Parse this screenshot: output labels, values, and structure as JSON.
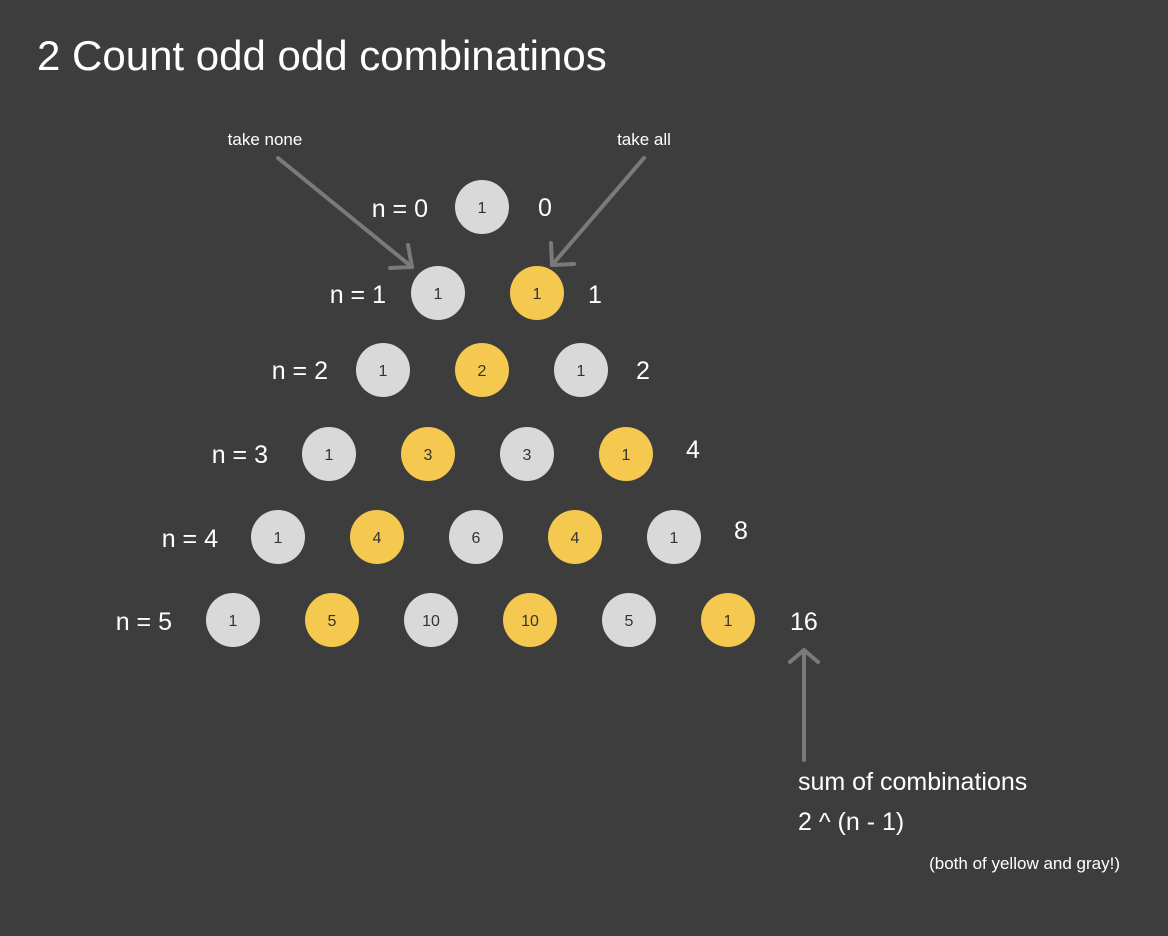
{
  "title": "2 Count odd odd combinatinos",
  "annotations": {
    "take_none": "take none",
    "take_all": "take all"
  },
  "rows": [
    {
      "label": "n = 0",
      "values": [
        "1"
      ],
      "colors": [
        "gray"
      ],
      "sum": "0"
    },
    {
      "label": "n = 1",
      "values": [
        "1",
        "1"
      ],
      "colors": [
        "gray",
        "yellow"
      ],
      "sum": "1"
    },
    {
      "label": "n = 2",
      "values": [
        "1",
        "2",
        "1"
      ],
      "colors": [
        "gray",
        "yellow",
        "gray"
      ],
      "sum": "2"
    },
    {
      "label": "n = 3",
      "values": [
        "1",
        "3",
        "3",
        "1"
      ],
      "colors": [
        "gray",
        "yellow",
        "gray",
        "yellow"
      ],
      "sum": "4"
    },
    {
      "label": "n = 4",
      "values": [
        "1",
        "4",
        "6",
        "4",
        "1"
      ],
      "colors": [
        "gray",
        "yellow",
        "gray",
        "yellow",
        "gray"
      ],
      "sum": "8"
    },
    {
      "label": "n = 5",
      "values": [
        "1",
        "5",
        "10",
        "10",
        "5",
        "1"
      ],
      "colors": [
        "gray",
        "yellow",
        "gray",
        "yellow",
        "gray",
        "yellow"
      ],
      "sum": "16"
    }
  ],
  "note": {
    "line1": "sum of combinations",
    "line2": "2 ^ (n - 1)",
    "small": "(both of yellow and gray!)"
  },
  "palette": {
    "background": "#3d3d3d",
    "gray": "#d9d9d9",
    "yellow": "#f5c94f",
    "arrow": "#7a7a7a",
    "text": "#ffffff",
    "circle_text": "#333333"
  }
}
